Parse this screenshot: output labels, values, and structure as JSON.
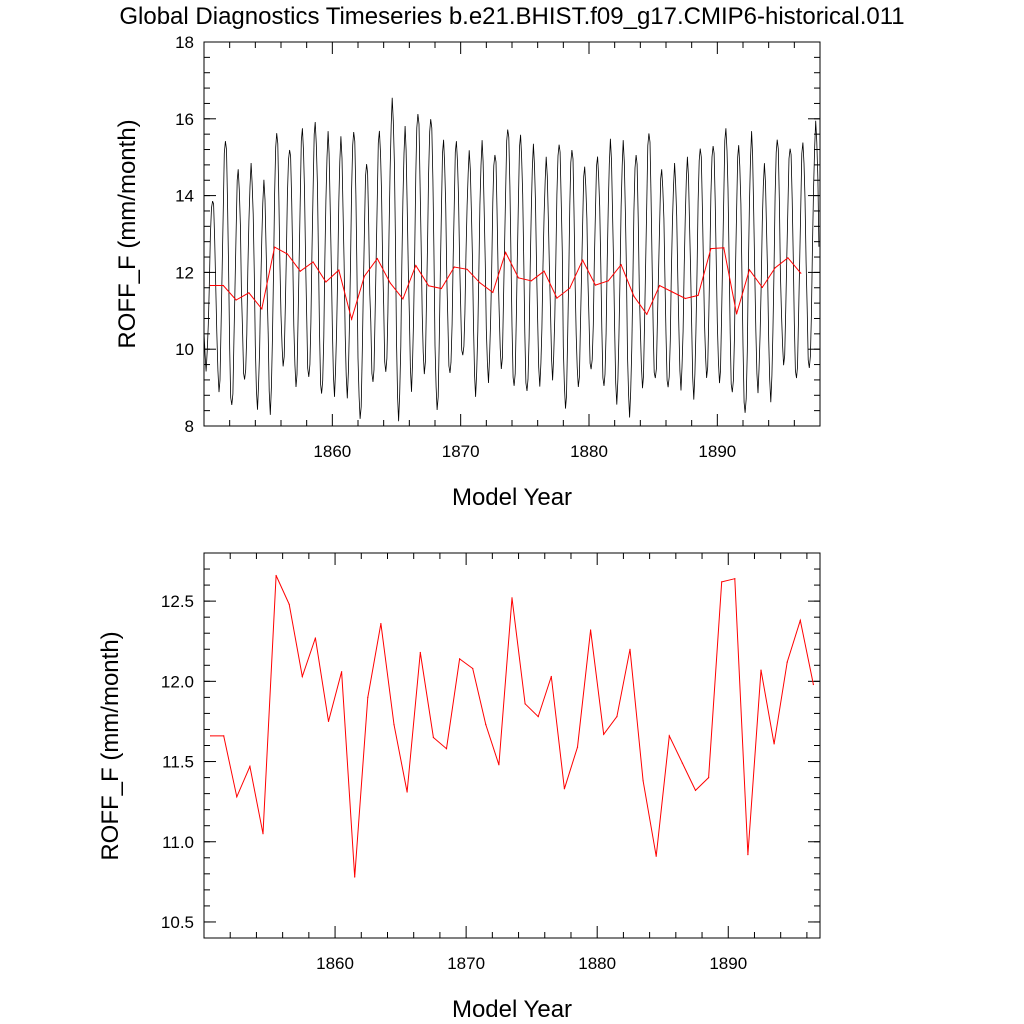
{
  "title": "Global Diagnostics Timeseries b.e21.BHIST.f09_g17.CMIP6-historical.011",
  "colors": {
    "monthly": "#000000",
    "annual": "#ff0000"
  },
  "chart_data": [
    {
      "type": "line",
      "xlabel": "Model Year",
      "ylabel": "ROFF_F (mm/month)",
      "xlim": [
        1850,
        1898
      ],
      "ylim": [
        8,
        18
      ],
      "xticks": [
        "1860",
        "1870",
        "1880",
        "1890"
      ],
      "yticks": [
        "8",
        "10",
        "12",
        "14",
        "16",
        "18"
      ],
      "grid": false,
      "monthly_series": {
        "start_year": 1850.0,
        "peaks": [
          14.0,
          15.5,
          14.7,
          14.8,
          14.3,
          15.8,
          15.3,
          15.8,
          15.9,
          15.6,
          15.4,
          15.8,
          14.9,
          15.7,
          16.5,
          15.7,
          16.3,
          16.1,
          15.5,
          15.4,
          15.1,
          15.3,
          15.2,
          15.8,
          15.6,
          15.3,
          14.9,
          15.5,
          15.3,
          14.8,
          15.0,
          15.4,
          15.3,
          15.2,
          15.7,
          14.7,
          14.8,
          14.9,
          15.4,
          15.4,
          15.8,
          15.3,
          15.6,
          14.7,
          15.6,
          15.3,
          15.4,
          15.9
        ],
        "troughs": [
          9.5,
          8.9,
          8.5,
          9.1,
          8.6,
          8.4,
          9.6,
          9.0,
          9.2,
          8.7,
          8.9,
          8.8,
          8.2,
          9.1,
          9.3,
          8.3,
          9.0,
          9.4,
          8.4,
          9.3,
          9.7,
          8.9,
          9.2,
          9.5,
          9.0,
          8.8,
          9.2,
          9.3,
          8.5,
          9.0,
          9.4,
          8.9,
          8.7,
          8.3,
          9.0,
          9.2,
          8.9,
          9.1,
          8.8,
          9.3,
          9.1,
          8.8,
          8.2,
          9.0,
          8.7,
          9.6,
          9.2,
          9.4
        ]
      },
      "series": [
        {
          "x": [
            1850.5,
            1851.5,
            1852.5,
            1853.5,
            1854.5,
            1855.5,
            1856.5,
            1857.5,
            1858.5,
            1859.5,
            1860.5,
            1861.5,
            1862.5,
            1863.5,
            1864.5,
            1865.5,
            1866.5,
            1867.5,
            1868.5,
            1869.5,
            1870.5,
            1871.5,
            1872.5,
            1873.5,
            1874.5,
            1875.5,
            1876.5,
            1877.5,
            1878.5,
            1879.5,
            1880.5,
            1881.5,
            1882.5,
            1883.5,
            1884.5,
            1885.5,
            1886.5,
            1887.5,
            1888.5,
            1889.5,
            1890.5,
            1891.5,
            1892.5,
            1893.5,
            1894.5,
            1895.5,
            1896.5
          ],
          "values": [
            11.66,
            11.66,
            11.28,
            11.47,
            11.05,
            12.66,
            12.48,
            12.03,
            12.27,
            11.75,
            12.06,
            10.78,
            11.9,
            12.36,
            11.73,
            11.31,
            12.18,
            11.65,
            11.58,
            12.14,
            12.08,
            11.73,
            11.48,
            12.52,
            11.86,
            11.78,
            12.03,
            11.33,
            11.59,
            12.32,
            11.67,
            11.78,
            12.2,
            11.38,
            10.91,
            11.66,
            11.49,
            11.32,
            11.4,
            12.62,
            12.64,
            10.92,
            12.07,
            11.61,
            12.12,
            12.38,
            11.98
          ]
        }
      ]
    },
    {
      "type": "line",
      "xlabel": "Model Year",
      "ylabel": "ROFF_F (mm/month)",
      "xlim": [
        1850,
        1897
      ],
      "ylim": [
        10.4,
        12.8
      ],
      "xticks": [
        "1860",
        "1870",
        "1880",
        "1890"
      ],
      "yticks": [
        "10.5",
        "11.0",
        "11.5",
        "12.0",
        "12.5"
      ],
      "grid": false,
      "series": [
        {
          "x": [
            1850.5,
            1851.5,
            1852.5,
            1853.5,
            1854.5,
            1855.5,
            1856.5,
            1857.5,
            1858.5,
            1859.5,
            1860.5,
            1861.5,
            1862.5,
            1863.5,
            1864.5,
            1865.5,
            1866.5,
            1867.5,
            1868.5,
            1869.5,
            1870.5,
            1871.5,
            1872.5,
            1873.5,
            1874.5,
            1875.5,
            1876.5,
            1877.5,
            1878.5,
            1879.5,
            1880.5,
            1881.5,
            1882.5,
            1883.5,
            1884.5,
            1885.5,
            1886.5,
            1887.5,
            1888.5,
            1889.5,
            1890.5,
            1891.5,
            1892.5,
            1893.5,
            1894.5,
            1895.5,
            1896.5
          ],
          "values": [
            11.66,
            11.66,
            11.28,
            11.47,
            11.05,
            12.66,
            12.48,
            12.03,
            12.27,
            11.75,
            12.06,
            10.78,
            11.9,
            12.36,
            11.73,
            11.31,
            12.18,
            11.65,
            11.58,
            12.14,
            12.08,
            11.73,
            11.48,
            12.52,
            11.86,
            11.78,
            12.03,
            11.33,
            11.59,
            12.32,
            11.67,
            11.78,
            12.2,
            11.38,
            10.91,
            11.66,
            11.49,
            11.32,
            11.4,
            12.62,
            12.64,
            10.92,
            12.07,
            11.61,
            12.12,
            12.38,
            11.98
          ]
        }
      ]
    }
  ]
}
